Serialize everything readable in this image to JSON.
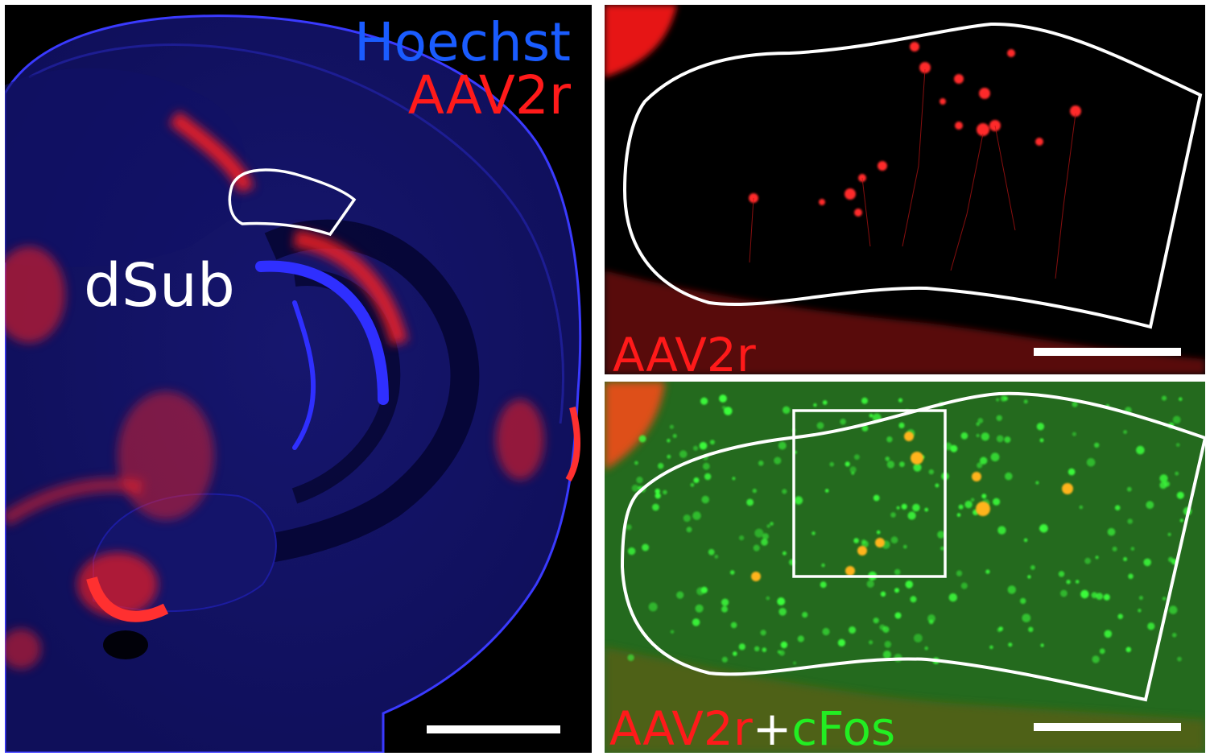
{
  "panels": {
    "overview": {
      "channel_labels": {
        "hoechst": "Hoechst",
        "aav2r": "AAV2r"
      },
      "region_label": "dSub",
      "colors": {
        "hoechst": "#1a5cff",
        "aav2r": "#ff1a1a",
        "label_white": "#ffffff"
      }
    },
    "zoom_top": {
      "label": "AAV2r",
      "colors": {
        "aav2r": "#ff1a1a"
      }
    },
    "zoom_bottom": {
      "label_red": "AAV2r",
      "label_plus": "+",
      "label_green": "cFos",
      "colors": {
        "aav2r": "#ff1a1a",
        "plus": "#ffffff",
        "cfos": "#22ee22"
      }
    }
  }
}
